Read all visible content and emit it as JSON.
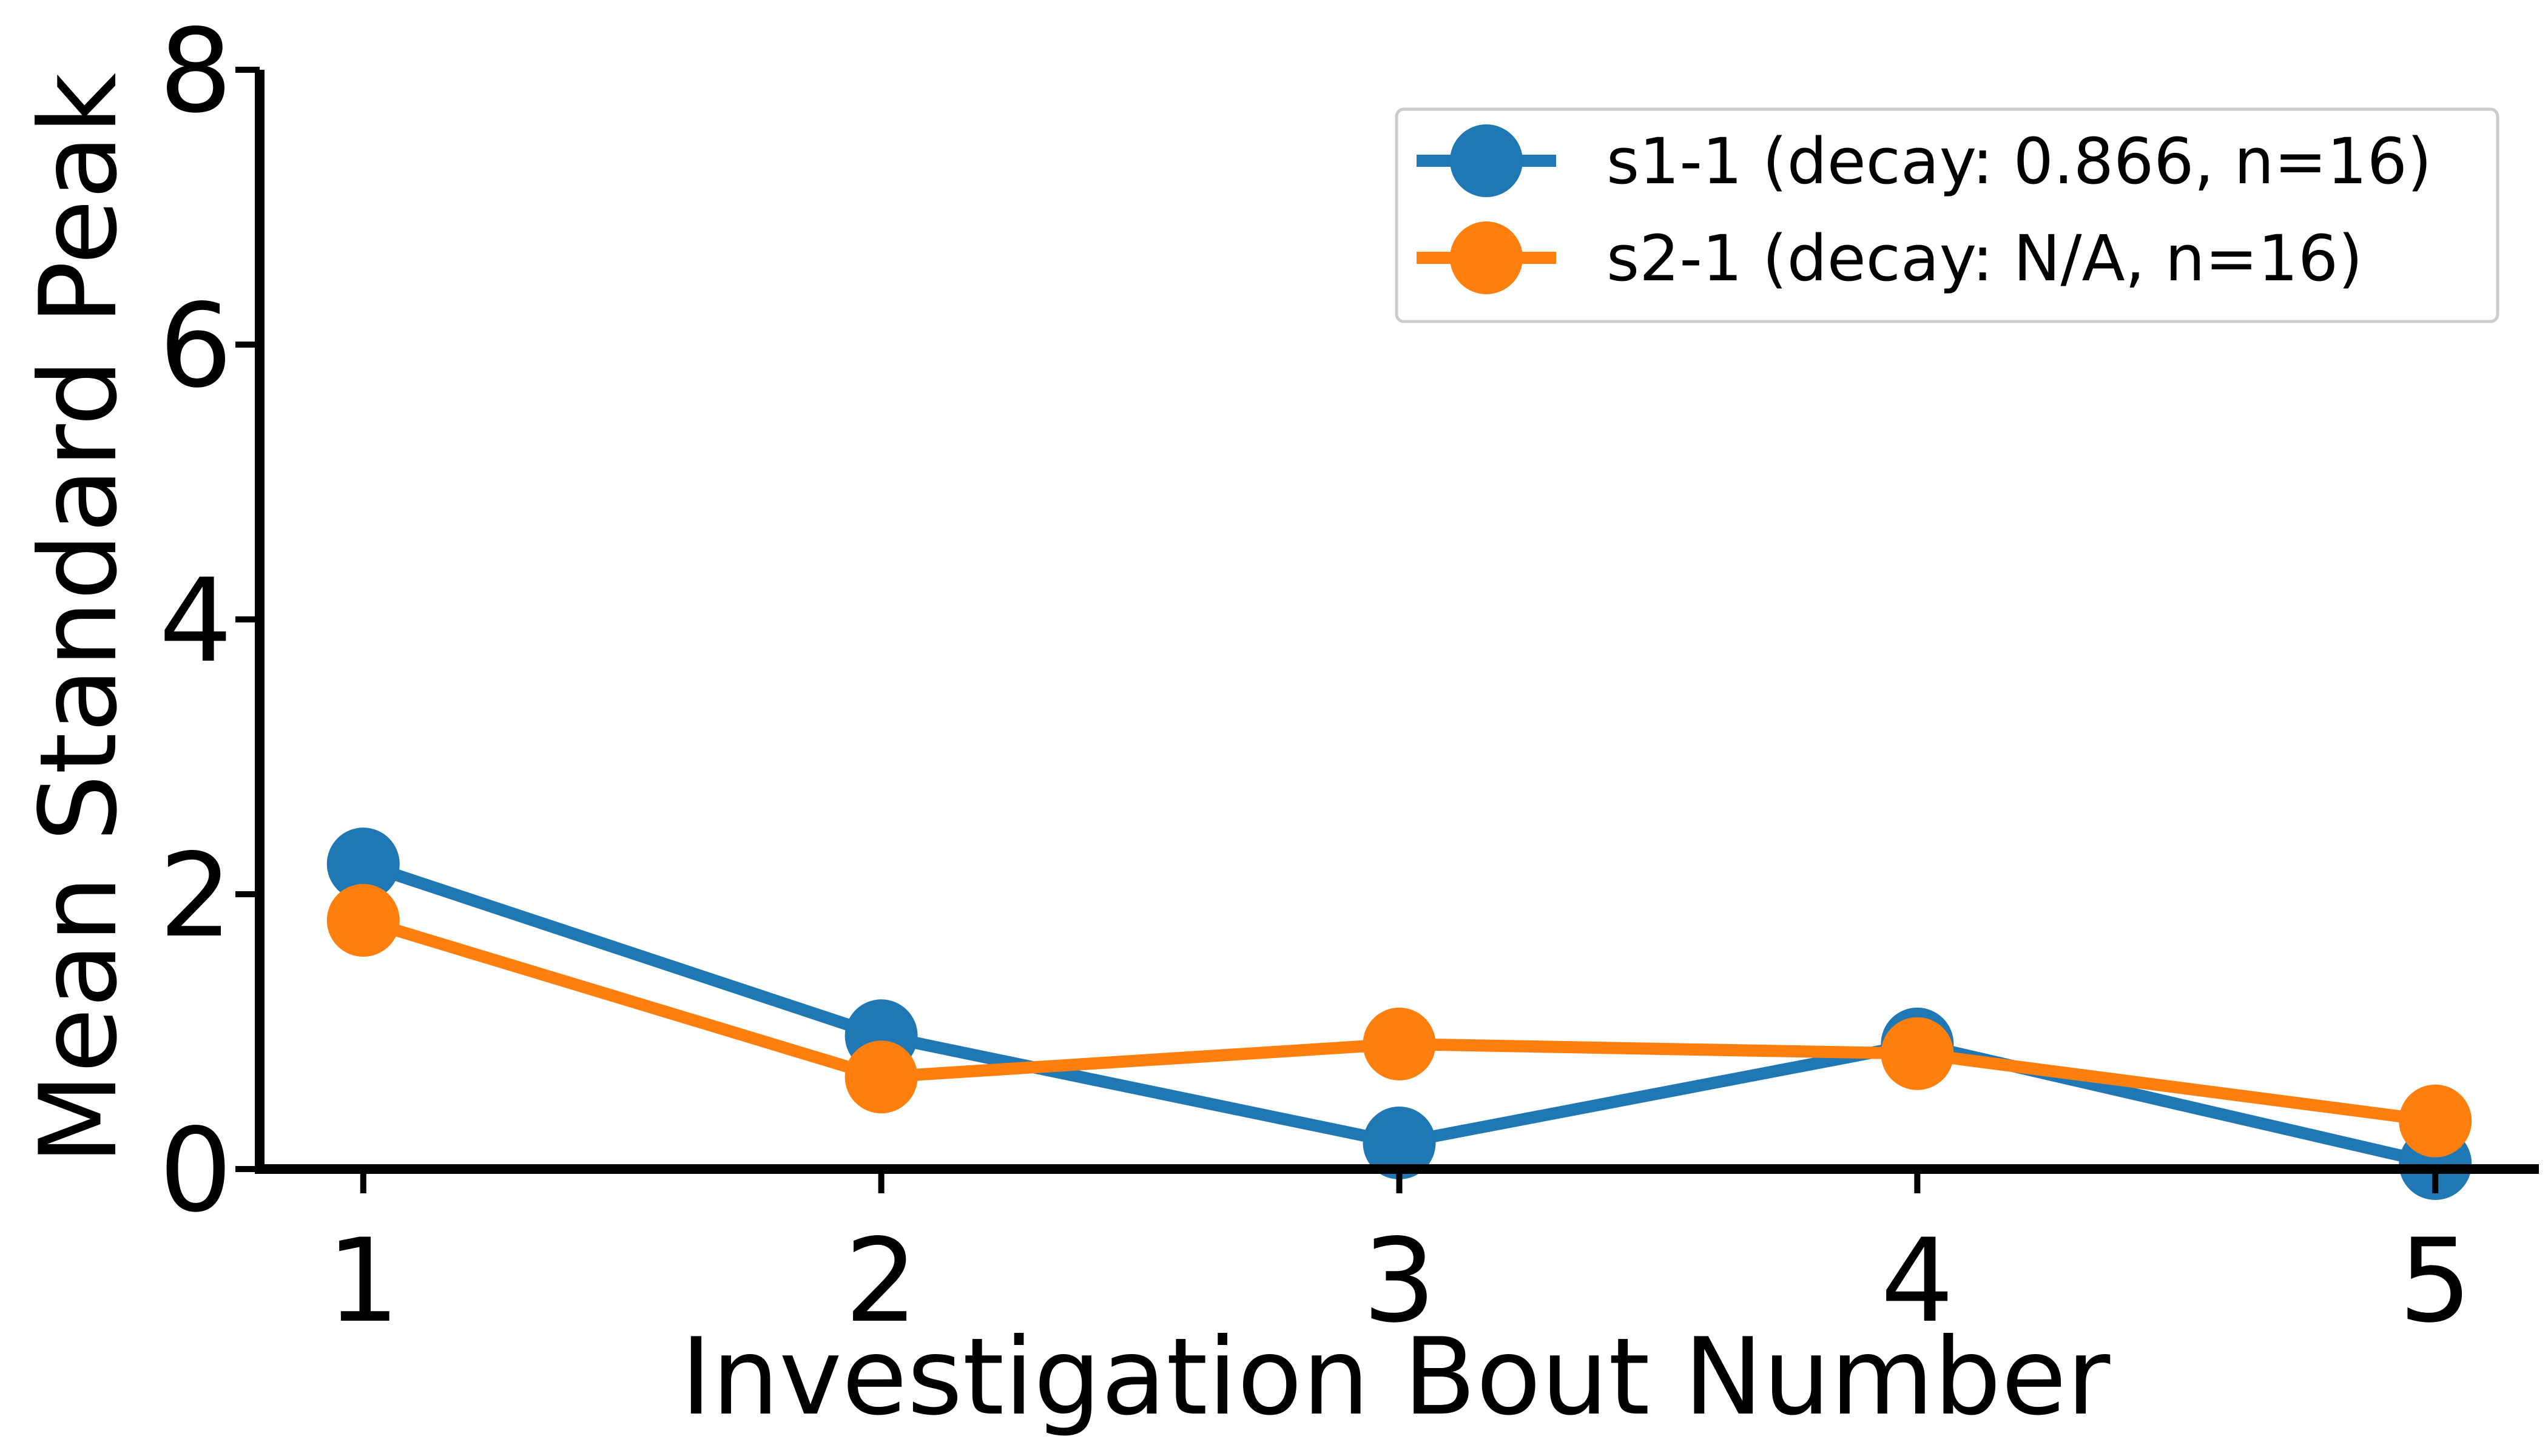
{
  "chart_data": {
    "type": "line",
    "xlabel": "Investigation Bout Number",
    "ylabel": "Mean Standard Peak",
    "x": [
      1,
      2,
      3,
      4,
      5
    ],
    "xticks": [
      "1",
      "2",
      "3",
      "4",
      "5"
    ],
    "yticks": [
      "0",
      "2",
      "4",
      "6",
      "8"
    ],
    "xlim": [
      0.8,
      5.2
    ],
    "ylim": [
      0,
      8
    ],
    "grid": false,
    "legend_position": "top-right",
    "series": [
      {
        "name": "s1-1 (decay: 0.866, n=16)",
        "color": "#1f77b4",
        "values": [
          2.22,
          0.97,
          0.19,
          0.91,
          0.04
        ]
      },
      {
        "name": "s2-1 (decay: N/A, n=16)",
        "color": "#ff7f0e",
        "values": [
          1.81,
          0.67,
          0.91,
          0.84,
          0.35
        ]
      }
    ]
  }
}
